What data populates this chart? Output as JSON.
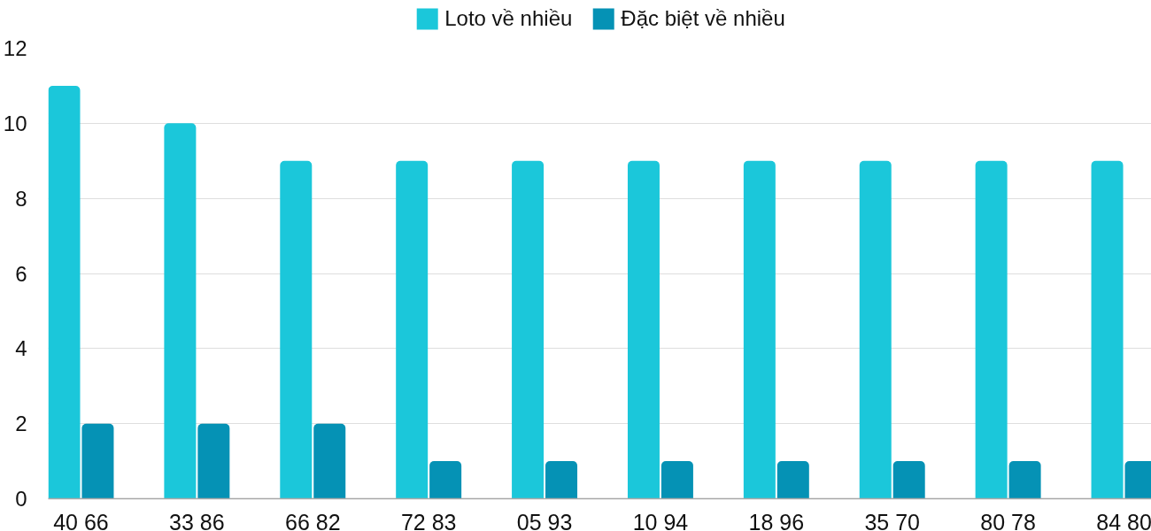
{
  "chart_data": {
    "type": "bar",
    "categories": [
      "40 66",
      "33 86",
      "66 82",
      "72 83",
      "05 93",
      "10 94",
      "18 96",
      "35 70",
      "80 78",
      "84 80"
    ],
    "series": [
      {
        "name": "Loto về nhiều",
        "color": "#1bc7da",
        "values": [
          11,
          10,
          9,
          9,
          9,
          9,
          9,
          9,
          9,
          9
        ]
      },
      {
        "name": "Đặc biệt về nhiều",
        "color": "#0592b5",
        "values": [
          2,
          2,
          2,
          1,
          1,
          1,
          1,
          1,
          1,
          1
        ]
      }
    ],
    "ylim": [
      0,
      12
    ],
    "yticks": [
      0,
      2,
      4,
      6,
      8,
      10,
      12
    ],
    "grid": "y",
    "legend": "top"
  }
}
